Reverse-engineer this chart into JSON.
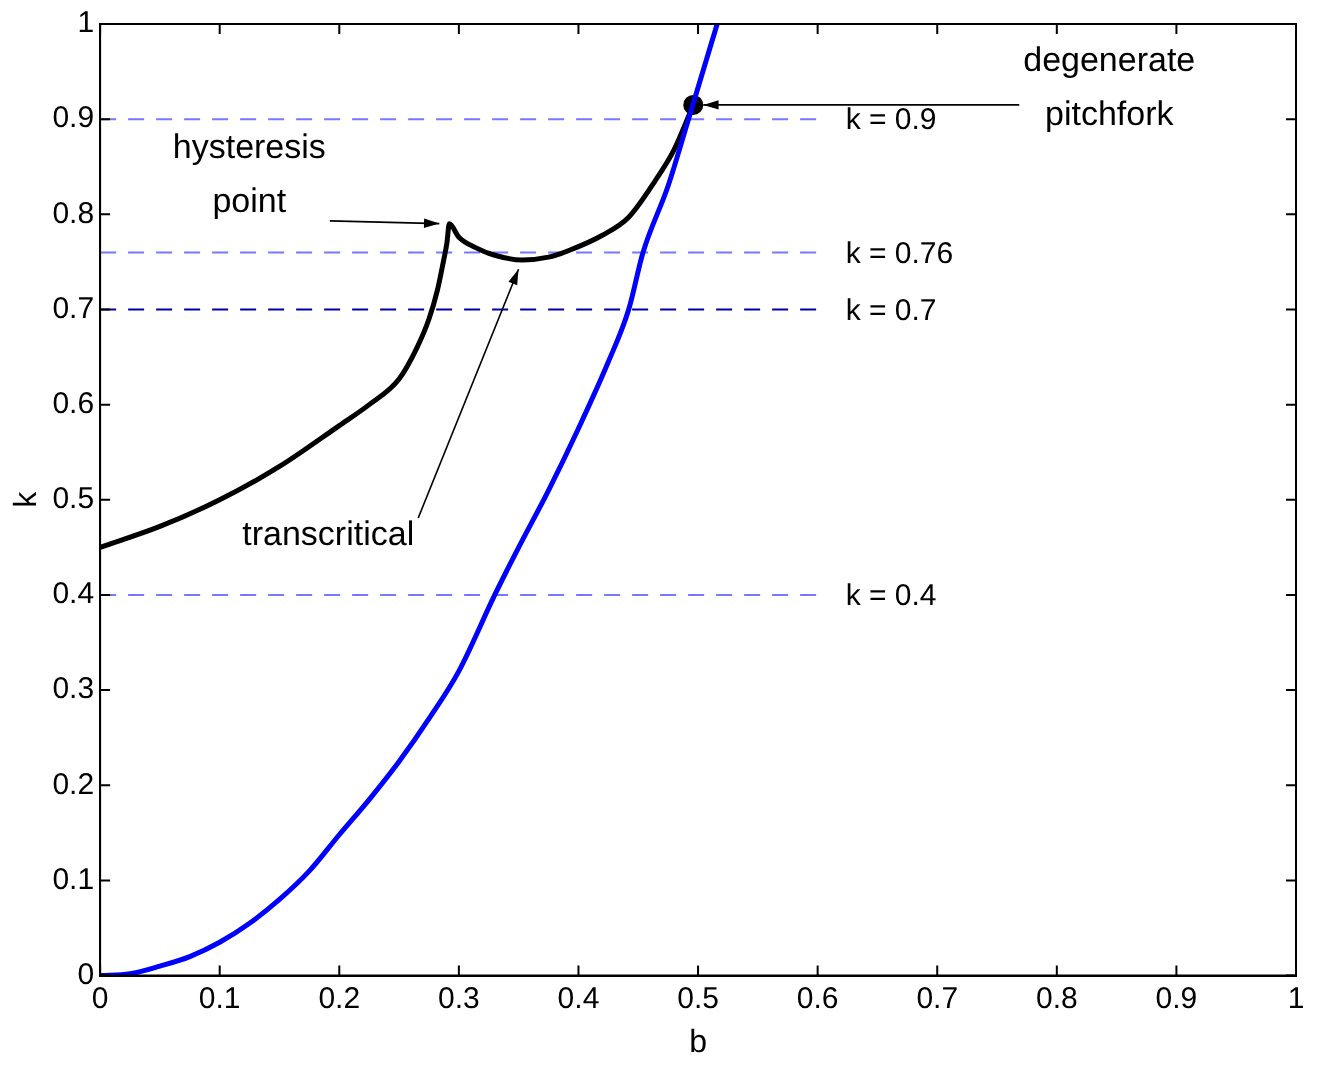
{
  "chart_data": {
    "type": "line",
    "xlabel": "b",
    "ylabel": "k",
    "xlim": [
      0,
      1
    ],
    "ylim": [
      0,
      1
    ],
    "xticks": [
      0,
      0.1,
      0.2,
      0.3,
      0.4,
      0.5,
      0.6,
      0.7,
      0.8,
      0.9,
      1
    ],
    "yticks": [
      0,
      0.1,
      0.2,
      0.3,
      0.4,
      0.5,
      0.6,
      0.7,
      0.8,
      0.9,
      1
    ],
    "grid": false,
    "legend": false,
    "marker": "none",
    "line_style": "solid",
    "series": [
      {
        "color": "#0000ff",
        "x": [
          0,
          0.025,
          0.05,
          0.075,
          0.1,
          0.125,
          0.15,
          0.175,
          0.2,
          0.225,
          0.25,
          0.275,
          0.3,
          0.33,
          0.35,
          0.375,
          0.4,
          0.425,
          0.442,
          0.454,
          0.475,
          0.492,
          0.516
        ],
        "values": [
          0,
          0.002,
          0.01,
          0.02,
          0.035,
          0.055,
          0.08,
          0.11,
          0.148,
          0.185,
          0.225,
          0.27,
          0.32,
          0.4,
          0.45,
          0.51,
          0.575,
          0.645,
          0.7,
          0.76,
          0.83,
          0.9,
          1
        ]
      },
      {
        "color": "#000000",
        "x": [
          0,
          0.05,
          0.1,
          0.15,
          0.2,
          0.225,
          0.25,
          0.265,
          0.275,
          0.282,
          0.287,
          0.29,
          0.292,
          0.3,
          0.314,
          0.33,
          0.353,
          0.375,
          0.392,
          0.42,
          0.442,
          0.464,
          0.48,
          0.496
        ],
        "values": [
          0.45,
          0.472,
          0.5,
          0.535,
          0.578,
          0.6,
          0.627,
          0.66,
          0.69,
          0.72,
          0.75,
          0.77,
          0.79,
          0.776,
          0.765,
          0.757,
          0.752,
          0.755,
          0.762,
          0.778,
          0.797,
          0.835,
          0.868,
          0.915
        ]
      },
      {
        "type": "scatter",
        "marker": "circle",
        "color": "#000000",
        "x": [
          0.496
        ],
        "values": [
          0.915
        ]
      }
    ],
    "ref_lines": [
      {
        "axis": "y",
        "value": 0.9,
        "label": "k = 0.9",
        "color": "#7777ff",
        "line_style": "dashed"
      },
      {
        "axis": "y",
        "value": 0.76,
        "label": "k = 0.76",
        "color": "#7777ff",
        "line_style": "dashed"
      },
      {
        "axis": "y",
        "value": 0.7,
        "label": "k = 0.7",
        "color": "#0000aa",
        "line_style": "dashed"
      },
      {
        "axis": "y",
        "value": 0.4,
        "label": "k = 0.4",
        "color": "#7777ff",
        "line_style": "dashed"
      }
    ],
    "annotations": [
      {
        "text": "hysteresis point",
        "x": 0.292,
        "y": 0.79
      },
      {
        "text": "transcritical",
        "x": 0.353,
        "y": 0.752
      },
      {
        "text": "degenerate pitchfork",
        "x": 0.496,
        "y": 0.915
      }
    ]
  }
}
